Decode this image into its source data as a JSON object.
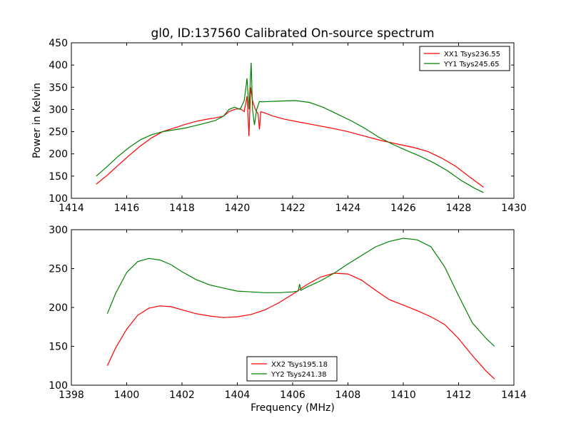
{
  "figure": {
    "title": "gl0, ID:137560 Calibrated On-source spectrum",
    "xlabel": "Frequency (MHz)"
  },
  "chart_data": [
    {
      "type": "line",
      "title": "gl0, ID:137560 Calibrated On-source spectrum",
      "xlabel": "",
      "ylabel": "Power in Kelvin",
      "xlim": [
        1414,
        1430
      ],
      "ylim": [
        100,
        450
      ],
      "xticks": [
        1414,
        1416,
        1418,
        1420,
        1422,
        1424,
        1426,
        1428,
        1430
      ],
      "yticks": [
        100,
        150,
        200,
        250,
        300,
        350,
        400,
        450
      ],
      "grid": false,
      "legend": "upper-right",
      "series": [
        {
          "name": "XX1 Tsys236.55",
          "color": "#ff0000",
          "x": [
            1414.9,
            1415.3,
            1415.7,
            1416.1,
            1416.5,
            1416.9,
            1417.3,
            1417.7,
            1418.1,
            1418.5,
            1418.9,
            1419.2,
            1419.5,
            1419.7,
            1419.9,
            1420.1,
            1420.25,
            1420.35,
            1420.42,
            1420.48,
            1420.55,
            1420.65,
            1420.75,
            1420.8,
            1420.85,
            1421.0,
            1421.3,
            1421.7,
            1422.2,
            1422.8,
            1423.4,
            1424.0,
            1424.6,
            1425.2,
            1425.8,
            1426.4,
            1426.9,
            1427.4,
            1427.9,
            1428.4,
            1428.9
          ],
          "values": [
            132,
            152,
            175,
            197,
            218,
            236,
            250,
            258,
            266,
            273,
            278,
            281,
            285,
            295,
            300,
            302,
            295,
            330,
            240,
            350,
            320,
            300,
            290,
            255,
            295,
            292,
            285,
            278,
            272,
            265,
            258,
            250,
            240,
            230,
            222,
            214,
            205,
            190,
            172,
            148,
            125
          ]
        },
        {
          "name": "YY1 Tsys245.65",
          "color": "#008000",
          "x": [
            1414.9,
            1415.3,
            1415.7,
            1416.1,
            1416.5,
            1416.9,
            1417.3,
            1417.7,
            1418.1,
            1418.5,
            1418.9,
            1419.2,
            1419.5,
            1419.7,
            1419.9,
            1420.1,
            1420.25,
            1420.35,
            1420.42,
            1420.5,
            1420.55,
            1420.62,
            1420.7,
            1420.8,
            1420.9,
            1421.2,
            1421.6,
            1422.1,
            1422.6,
            1423.1,
            1423.6,
            1424.1,
            1424.6,
            1425.1,
            1425.6,
            1426.1,
            1426.6,
            1427.1,
            1427.6,
            1428.1,
            1428.6,
            1428.9
          ],
          "values": [
            150,
            172,
            195,
            215,
            232,
            243,
            250,
            254,
            258,
            264,
            270,
            275,
            285,
            300,
            305,
            300,
            320,
            370,
            300,
            405,
            300,
            265,
            300,
            318,
            317,
            318,
            319,
            320,
            316,
            305,
            290,
            275,
            258,
            238,
            222,
            208,
            195,
            180,
            162,
            140,
            122,
            113
          ]
        }
      ]
    },
    {
      "type": "line",
      "title": "",
      "xlabel": "Frequency (MHz)",
      "ylabel": "",
      "xlim": [
        1398,
        1414
      ],
      "ylim": [
        100,
        300
      ],
      "xticks": [
        1398,
        1400,
        1402,
        1404,
        1406,
        1408,
        1410,
        1412,
        1414
      ],
      "yticks": [
        100,
        150,
        200,
        250,
        300
      ],
      "grid": false,
      "legend": "lower-center",
      "series": [
        {
          "name": "XX2 Tsys195.18",
          "color": "#ff0000",
          "x": [
            1399.3,
            1399.6,
            1400.0,
            1400.4,
            1400.8,
            1401.2,
            1401.6,
            1402.0,
            1402.5,
            1403.0,
            1403.5,
            1404.0,
            1404.5,
            1405.0,
            1405.5,
            1406.0,
            1406.5,
            1407.0,
            1407.5,
            1408.0,
            1408.5,
            1409.0,
            1409.5,
            1410.0,
            1410.5,
            1411.0,
            1411.5,
            1412.0,
            1412.5,
            1413.0,
            1413.3
          ],
          "values": [
            125,
            148,
            172,
            190,
            199,
            202,
            201,
            197,
            192,
            189,
            187,
            188,
            191,
            197,
            206,
            217,
            229,
            239,
            244,
            243,
            235,
            222,
            210,
            203,
            196,
            188,
            178,
            160,
            138,
            118,
            108
          ]
        },
        {
          "name": "YY2 Tsys241.38",
          "color": "#008000",
          "x": [
            1399.3,
            1399.6,
            1400.0,
            1400.4,
            1400.8,
            1401.2,
            1401.6,
            1402.0,
            1402.5,
            1403.0,
            1403.5,
            1404.0,
            1404.5,
            1405.0,
            1405.5,
            1406.0,
            1406.2,
            1406.25,
            1406.3,
            1406.5,
            1407.0,
            1407.5,
            1408.0,
            1408.5,
            1409.0,
            1409.5,
            1410.0,
            1410.5,
            1411.0,
            1411.5,
            1412.0,
            1412.5,
            1413.0,
            1413.3
          ],
          "values": [
            192,
            218,
            245,
            259,
            263,
            261,
            255,
            246,
            236,
            229,
            225,
            221,
            220,
            219,
            219,
            220,
            221,
            230,
            222,
            226,
            234,
            244,
            256,
            267,
            278,
            285,
            289,
            287,
            278,
            252,
            215,
            180,
            160,
            150
          ]
        }
      ]
    }
  ]
}
